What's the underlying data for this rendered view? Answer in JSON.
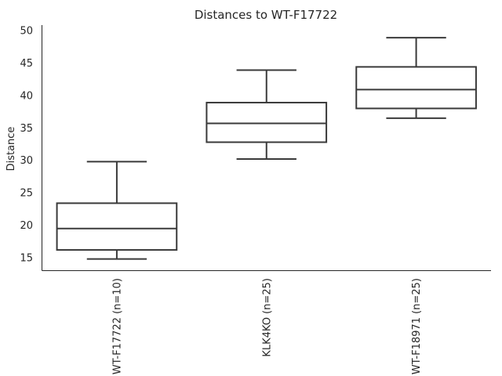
{
  "chart_data": {
    "type": "box",
    "title": "Distances to WT-F17722",
    "xlabel": "",
    "ylabel": "Distance",
    "ylim": [
      13,
      51
    ],
    "yticks": [
      15,
      20,
      25,
      30,
      35,
      40,
      45,
      50
    ],
    "grid": false,
    "categories": [
      "WT-F17722 (n=10)",
      "KLK4KO (n=25)",
      "WT-F18971 (n=25)"
    ],
    "boxes": [
      {
        "whisker_low": 14.8,
        "q1": 16.2,
        "median": 19.5,
        "q3": 23.4,
        "whisker_high": 29.8
      },
      {
        "whisker_low": 30.2,
        "q1": 32.8,
        "median": 35.7,
        "q3": 38.9,
        "whisker_high": 43.9
      },
      {
        "whisker_low": 36.5,
        "q1": 38.0,
        "median": 40.9,
        "q3": 44.4,
        "whisker_high": 48.9
      }
    ]
  }
}
